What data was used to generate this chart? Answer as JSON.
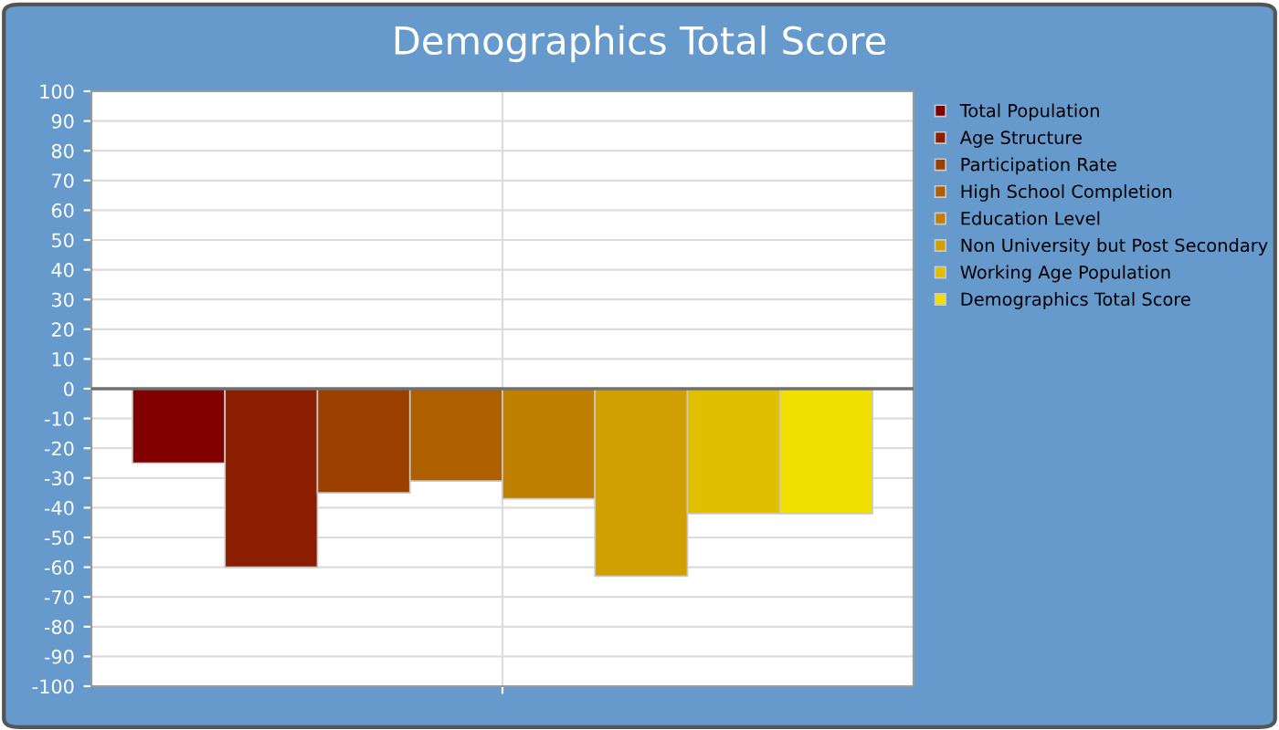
{
  "chart_data": {
    "type": "bar",
    "title": "Demographics Total Score",
    "categories": [
      null
    ],
    "series": [
      {
        "name": "Total Population",
        "color": "#800000",
        "values": [
          -25
        ]
      },
      {
        "name": "Age Structure",
        "color": "#8b1e00",
        "values": [
          -60
        ]
      },
      {
        "name": "Participation Rate",
        "color": "#9c4000",
        "values": [
          -35
        ]
      },
      {
        "name": "High School Completion",
        "color": "#ae6000",
        "values": [
          -31
        ]
      },
      {
        "name": "Education Level",
        "color": "#bf8000",
        "values": [
          -37
        ]
      },
      {
        "name": "Non University but Post Secondary",
        "color": "#d0a000",
        "values": [
          -63
        ]
      },
      {
        "name": "Working Age Population",
        "color": "#e0be00",
        "values": [
          -42
        ]
      },
      {
        "name": "Demographics Total Score",
        "color": "#f0e000",
        "values": [
          -42
        ]
      }
    ],
    "ylim": [
      -100,
      100
    ],
    "yticks": [
      -100,
      -90,
      -80,
      -70,
      -60,
      -50,
      -40,
      -30,
      -20,
      -10,
      0,
      10,
      20,
      30,
      40,
      50,
      60,
      70,
      80,
      90,
      100
    ],
    "ref_lines": [
      {
        "axis": "y",
        "value": 0,
        "color": "#707070"
      }
    ],
    "grid": true,
    "legend": "top right"
  }
}
